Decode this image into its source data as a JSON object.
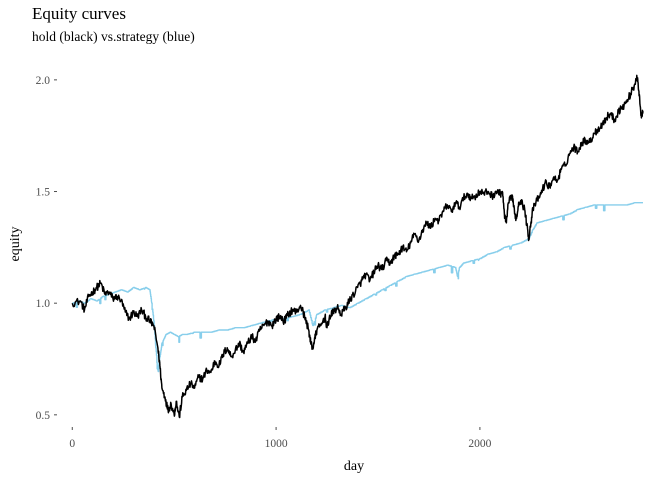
{
  "chart_data": {
    "type": "line",
    "title": "Equity curves",
    "subtitle": "hold (black) vs.strategy (blue)",
    "xlabel": "day",
    "ylabel": "equity",
    "xlim": [
      -70,
      2810
    ],
    "ylim": [
      0.45,
      2.08
    ],
    "x_ticks": [
      0,
      1000,
      2000
    ],
    "y_ticks": [
      0.5,
      1.0,
      1.5,
      2.0
    ],
    "x_tick_labels": [
      "0",
      "1000",
      "2000"
    ],
    "y_tick_labels": [
      "0.5",
      "1.0",
      "1.5",
      "2.0"
    ],
    "grid": false,
    "series": [
      {
        "name": "hold",
        "color": "#000000",
        "points": [
          [
            0,
            1.0
          ],
          [
            40,
            1.01
          ],
          [
            60,
            0.97
          ],
          [
            80,
            1.03
          ],
          [
            100,
            1.05
          ],
          [
            120,
            1.07
          ],
          [
            140,
            1.09
          ],
          [
            160,
            1.04
          ],
          [
            180,
            1.05
          ],
          [
            200,
            1.02
          ],
          [
            220,
            1.03
          ],
          [
            240,
            1.01
          ],
          [
            260,
            0.96
          ],
          [
            280,
            0.93
          ],
          [
            300,
            0.96
          ],
          [
            320,
            0.94
          ],
          [
            340,
            0.97
          ],
          [
            360,
            0.94
          ],
          [
            380,
            0.92
          ],
          [
            400,
            0.9
          ],
          [
            420,
            0.8
          ],
          [
            430,
            0.72
          ],
          [
            440,
            0.62
          ],
          [
            455,
            0.58
          ],
          [
            470,
            0.52
          ],
          [
            485,
            0.55
          ],
          [
            500,
            0.5
          ],
          [
            510,
            0.56
          ],
          [
            525,
            0.49
          ],
          [
            540,
            0.58
          ],
          [
            560,
            0.61
          ],
          [
            580,
            0.64
          ],
          [
            600,
            0.62
          ],
          [
            620,
            0.67
          ],
          [
            640,
            0.66
          ],
          [
            660,
            0.7
          ],
          [
            680,
            0.69
          ],
          [
            700,
            0.74
          ],
          [
            720,
            0.72
          ],
          [
            740,
            0.77
          ],
          [
            760,
            0.8
          ],
          [
            780,
            0.76
          ],
          [
            800,
            0.79
          ],
          [
            820,
            0.82
          ],
          [
            840,
            0.78
          ],
          [
            860,
            0.82
          ],
          [
            880,
            0.85
          ],
          [
            900,
            0.83
          ],
          [
            920,
            0.88
          ],
          [
            940,
            0.9
          ],
          [
            960,
            0.92
          ],
          [
            980,
            0.9
          ],
          [
            1000,
            0.93
          ],
          [
            1020,
            0.94
          ],
          [
            1040,
            0.92
          ],
          [
            1060,
            0.95
          ],
          [
            1080,
            0.97
          ],
          [
            1100,
            0.96
          ],
          [
            1120,
            0.99
          ],
          [
            1140,
            0.94
          ],
          [
            1160,
            0.88
          ],
          [
            1170,
            0.82
          ],
          [
            1180,
            0.8
          ],
          [
            1190,
            0.84
          ],
          [
            1200,
            0.88
          ],
          [
            1220,
            0.9
          ],
          [
            1240,
            0.94
          ],
          [
            1250,
            0.89
          ],
          [
            1260,
            0.93
          ],
          [
            1280,
            0.96
          ],
          [
            1300,
            0.98
          ],
          [
            1320,
            0.95
          ],
          [
            1340,
            0.98
          ],
          [
            1360,
            1.01
          ],
          [
            1380,
            1.04
          ],
          [
            1400,
            1.07
          ],
          [
            1420,
            1.1
          ],
          [
            1440,
            1.13
          ],
          [
            1460,
            1.1
          ],
          [
            1480,
            1.14
          ],
          [
            1500,
            1.17
          ],
          [
            1520,
            1.15
          ],
          [
            1540,
            1.19
          ],
          [
            1560,
            1.18
          ],
          [
            1580,
            1.21
          ],
          [
            1600,
            1.22
          ],
          [
            1620,
            1.25
          ],
          [
            1640,
            1.23
          ],
          [
            1660,
            1.27
          ],
          [
            1680,
            1.31
          ],
          [
            1700,
            1.28
          ],
          [
            1720,
            1.33
          ],
          [
            1740,
            1.36
          ],
          [
            1760,
            1.34
          ],
          [
            1780,
            1.38
          ],
          [
            1800,
            1.37
          ],
          [
            1820,
            1.41
          ],
          [
            1840,
            1.44
          ],
          [
            1860,
            1.41
          ],
          [
            1880,
            1.45
          ],
          [
            1900,
            1.43
          ],
          [
            1920,
            1.47
          ],
          [
            1940,
            1.49
          ],
          [
            1960,
            1.47
          ],
          [
            1980,
            1.48
          ],
          [
            2000,
            1.5
          ],
          [
            2020,
            1.49
          ],
          [
            2040,
            1.5
          ],
          [
            2060,
            1.48
          ],
          [
            2080,
            1.5
          ],
          [
            2100,
            1.49
          ],
          [
            2110,
            1.5
          ],
          [
            2120,
            1.4
          ],
          [
            2130,
            1.36
          ],
          [
            2140,
            1.45
          ],
          [
            2160,
            1.48
          ],
          [
            2170,
            1.4
          ],
          [
            2180,
            1.38
          ],
          [
            2190,
            1.45
          ],
          [
            2200,
            1.46
          ],
          [
            2220,
            1.42
          ],
          [
            2230,
            1.35
          ],
          [
            2240,
            1.29
          ],
          [
            2250,
            1.36
          ],
          [
            2260,
            1.42
          ],
          [
            2280,
            1.46
          ],
          [
            2300,
            1.49
          ],
          [
            2320,
            1.54
          ],
          [
            2340,
            1.52
          ],
          [
            2360,
            1.56
          ],
          [
            2380,
            1.55
          ],
          [
            2400,
            1.6
          ],
          [
            2420,
            1.62
          ],
          [
            2440,
            1.67
          ],
          [
            2460,
            1.7
          ],
          [
            2480,
            1.68
          ],
          [
            2500,
            1.72
          ],
          [
            2520,
            1.73
          ],
          [
            2540,
            1.72
          ],
          [
            2560,
            1.76
          ],
          [
            2580,
            1.78
          ],
          [
            2600,
            1.8
          ],
          [
            2620,
            1.83
          ],
          [
            2640,
            1.85
          ],
          [
            2660,
            1.82
          ],
          [
            2680,
            1.86
          ],
          [
            2700,
            1.88
          ],
          [
            2720,
            1.9
          ],
          [
            2740,
            1.94
          ],
          [
            2760,
            1.98
          ],
          [
            2770,
            2.02
          ],
          [
            2780,
            1.95
          ],
          [
            2790,
            1.84
          ],
          [
            2800,
            1.86
          ]
        ]
      },
      {
        "name": "strategy",
        "color": "#87CEEB",
        "points": [
          [
            0,
            1.0
          ],
          [
            30,
            1.01
          ],
          [
            60,
            1.0
          ],
          [
            90,
            1.02
          ],
          [
            120,
            1.01
          ],
          [
            150,
            1.03
          ],
          [
            180,
            1.04
          ],
          [
            210,
            1.05
          ],
          [
            240,
            1.06
          ],
          [
            270,
            1.05
          ],
          [
            300,
            1.07
          ],
          [
            330,
            1.06
          ],
          [
            360,
            1.07
          ],
          [
            380,
            1.06
          ],
          [
            390,
            1.0
          ],
          [
            400,
            0.92
          ],
          [
            410,
            0.8
          ],
          [
            420,
            0.7
          ],
          [
            430,
            0.76
          ],
          [
            440,
            0.82
          ],
          [
            450,
            0.84
          ],
          [
            460,
            0.86
          ],
          [
            480,
            0.87
          ],
          [
            500,
            0.86
          ],
          [
            520,
            0.85
          ],
          [
            540,
            0.86
          ],
          [
            560,
            0.86
          ],
          [
            600,
            0.87
          ],
          [
            640,
            0.87
          ],
          [
            680,
            0.87
          ],
          [
            720,
            0.88
          ],
          [
            760,
            0.88
          ],
          [
            800,
            0.89
          ],
          [
            840,
            0.89
          ],
          [
            880,
            0.9
          ],
          [
            920,
            0.91
          ],
          [
            960,
            0.92
          ],
          [
            1000,
            0.93
          ],
          [
            1040,
            0.93
          ],
          [
            1080,
            0.94
          ],
          [
            1120,
            0.95
          ],
          [
            1160,
            0.97
          ],
          [
            1180,
            0.9
          ],
          [
            1200,
            0.95
          ],
          [
            1240,
            0.97
          ],
          [
            1280,
            0.98
          ],
          [
            1320,
            0.99
          ],
          [
            1360,
            0.98
          ],
          [
            1400,
            1.0
          ],
          [
            1440,
            1.02
          ],
          [
            1480,
            1.04
          ],
          [
            1520,
            1.06
          ],
          [
            1560,
            1.08
          ],
          [
            1600,
            1.1
          ],
          [
            1640,
            1.12
          ],
          [
            1680,
            1.13
          ],
          [
            1720,
            1.14
          ],
          [
            1760,
            1.15
          ],
          [
            1800,
            1.16
          ],
          [
            1840,
            1.17
          ],
          [
            1880,
            1.16
          ],
          [
            1890,
            1.12
          ],
          [
            1900,
            1.16
          ],
          [
            1920,
            1.18
          ],
          [
            1960,
            1.19
          ],
          [
            2000,
            1.2
          ],
          [
            2040,
            1.22
          ],
          [
            2080,
            1.23
          ],
          [
            2120,
            1.25
          ],
          [
            2160,
            1.26
          ],
          [
            2200,
            1.27
          ],
          [
            2240,
            1.29
          ],
          [
            2260,
            1.33
          ],
          [
            2280,
            1.36
          ],
          [
            2320,
            1.37
          ],
          [
            2360,
            1.38
          ],
          [
            2400,
            1.39
          ],
          [
            2440,
            1.4
          ],
          [
            2480,
            1.42
          ],
          [
            2520,
            1.43
          ],
          [
            2560,
            1.44
          ],
          [
            2600,
            1.44
          ],
          [
            2640,
            1.44
          ],
          [
            2680,
            1.44
          ],
          [
            2720,
            1.44
          ],
          [
            2760,
            1.45
          ],
          [
            2800,
            1.45
          ]
        ]
      }
    ]
  }
}
